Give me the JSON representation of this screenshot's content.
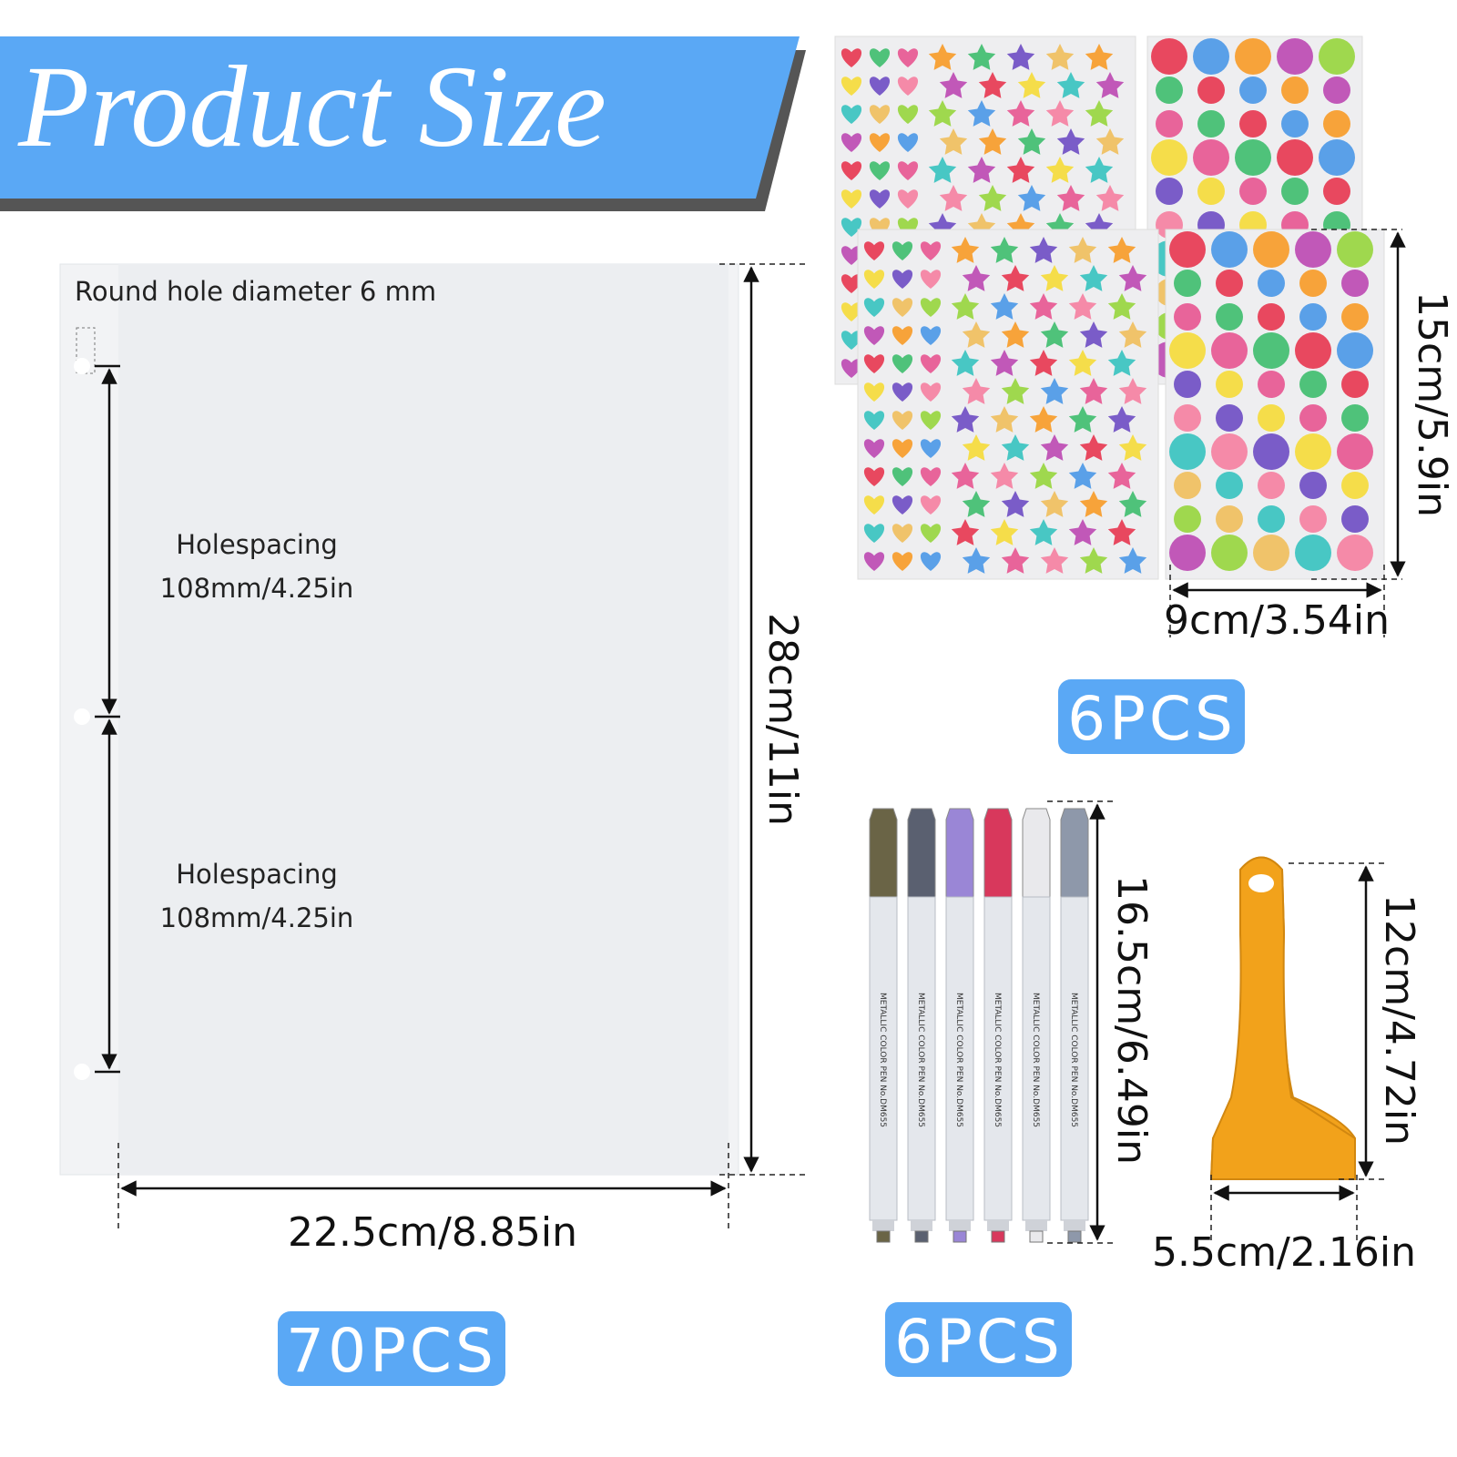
{
  "header": {
    "title": "Product Size"
  },
  "paper": {
    "hole_note": "Round hole diameter 6 mm",
    "spacings": [
      {
        "label": "Holespacing",
        "value": "108mm/4.25in"
      },
      {
        "label": "Holespacing",
        "value": "108mm/4.25in"
      }
    ],
    "height": "28cm/11in",
    "width": "22.5cm/8.85in",
    "quantity": "70PCS"
  },
  "stickers": {
    "height": "15cm/5.9in",
    "width": "9cm/3.54in",
    "quantity": "6PCS"
  },
  "pens": {
    "imprint": "METALLIC COLOR PEN No.DM655",
    "height": "16.5cm/6.49in",
    "quantity": "6PCS"
  },
  "scraper": {
    "height": "12cm/4.72in",
    "width": "5.5cm/2.16in"
  }
}
